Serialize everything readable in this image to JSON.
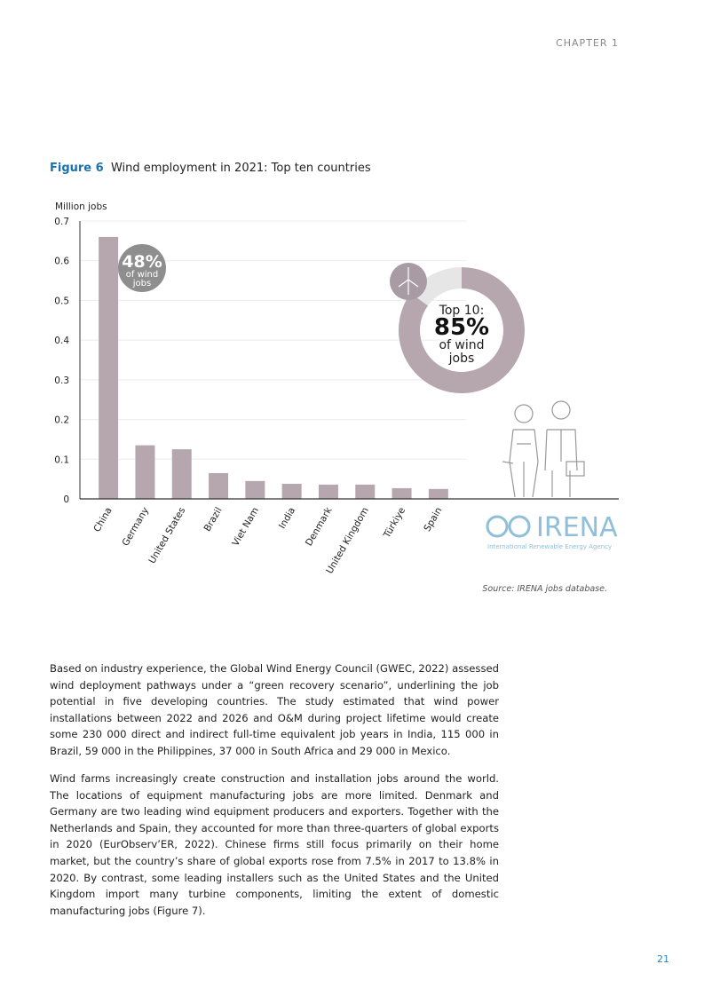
{
  "header": "CHAPTER 1",
  "figure": {
    "label": "Figure 6",
    "caption": "Wind employment in 2021: Top ten countries",
    "source": "Source: IRENA jobs database."
  },
  "chart_data": {
    "type": "bar",
    "y_label": "Million jobs",
    "categories": [
      "China",
      "Germany",
      "United States",
      "Brazil",
      "Viet Nam",
      "India",
      "Denmark",
      "United Kingdom",
      "Türkiye",
      "Spain"
    ],
    "values": [
      0.66,
      0.135,
      0.125,
      0.065,
      0.045,
      0.038,
      0.036,
      0.036,
      0.027,
      0.025
    ],
    "color": "#b6a6ae",
    "ylim": [
      0,
      0.7
    ],
    "yticks": [
      0,
      0.1,
      0.2,
      0.3,
      0.4,
      0.5,
      0.6,
      0.7
    ],
    "grid": true,
    "china_share": {
      "value": 48,
      "value_label": "48%",
      "subtitle": "of wind jobs"
    },
    "top10_share": {
      "title": "Top 10:",
      "value": 85,
      "value_label": "85%",
      "subtitle": "of wind jobs"
    }
  },
  "logo": {
    "name": "IRENA",
    "full_name": "International Renewable Energy Agency"
  },
  "paragraphs": [
    "Based on industry experience, the Global Wind Energy Council (GWEC, 2022) assessed wind deployment pathways under a “green recovery scenario”, underlining the job potential in five developing countries. The study estimated that wind power installations between 2022 and 2026 and O&M during project lifetime would create some 230 000 direct and indirect full-time equivalent job years in India, 115 000 in Brazil, 59 000 in the Philippines, 37 000 in South Africa and 29 000 in Mexico.",
    "Wind farms increasingly create construction and installation jobs around the world. The locations of equipment manufacturing jobs are more limited. Denmark and Germany are two leading wind equipment producers and exporters. Together with the Netherlands and Spain, they accounted for more than three-quarters of global exports in 2020 (EurObserv’ER, 2022). Chinese firms still focus primarily on their home market, but the country’s share of global exports rose from 7.5% in 2017 to 13.8% in 2020. By contrast, some leading installers such as the United States and the United Kingdom import many turbine components, limiting the extent of domestic manufacturing jobs (Figure 7)."
  ],
  "page_number": "21"
}
